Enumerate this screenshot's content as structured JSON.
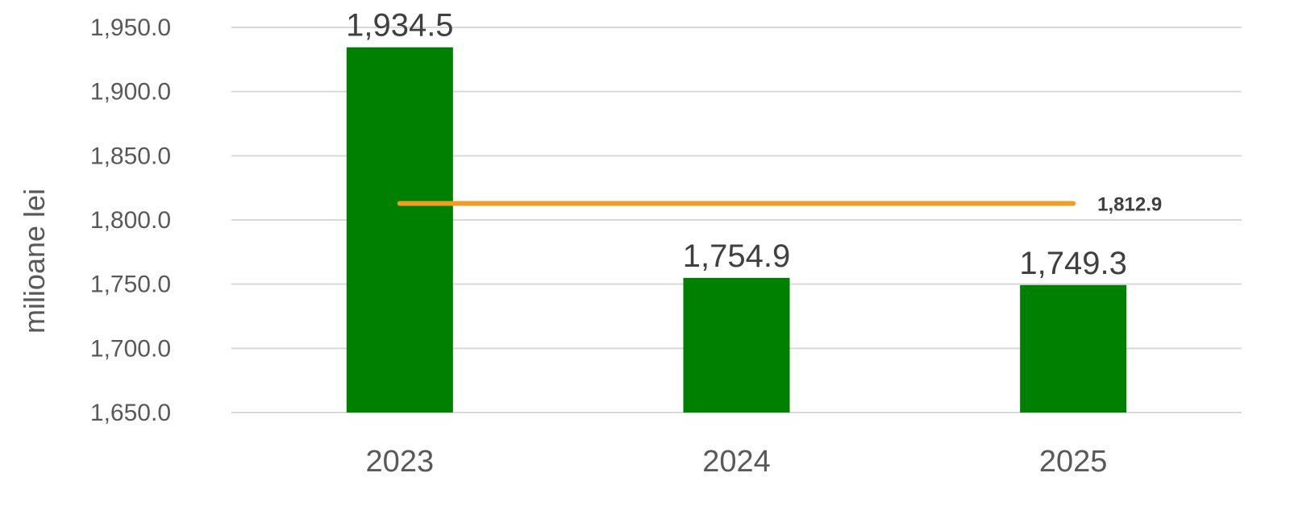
{
  "chart_data": {
    "type": "bar",
    "categories": [
      "2023",
      "2024",
      "2025"
    ],
    "values": [
      1934.5,
      1754.9,
      1749.3
    ],
    "value_labels": [
      "1,934.5",
      "1,754.9",
      "1,749.3"
    ],
    "ylabel": "milioane lei",
    "ylim": [
      1650,
      1950
    ],
    "yticks": [
      "1,650.0",
      "1,700.0",
      "1,750.0",
      "1,800.0",
      "1,850.0",
      "1,900.0",
      "1,950.0"
    ],
    "ytick_values": [
      1650,
      1700,
      1750,
      1800,
      1850,
      1900,
      1950
    ],
    "grid": true,
    "reference_line": {
      "value": 1812.9,
      "label": "1,812.9"
    },
    "colors": {
      "bar": "#008000",
      "reference_line": "#F39C1F",
      "grid": "#D9D9D9"
    }
  }
}
